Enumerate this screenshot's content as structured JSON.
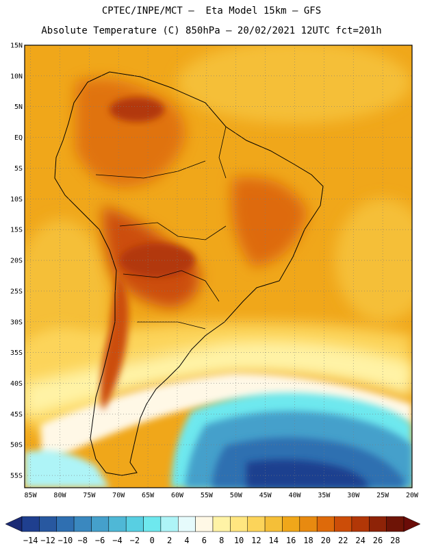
{
  "header": {
    "line1": "CPTEC/INPE/MCT –  Eta Model 15km – GFS",
    "line2": "Absolute Temperature (C) 850hPa – 20/02/2021 12UTC fct=201h"
  },
  "map": {
    "lat_labels": [
      "15N",
      "10N",
      "5N",
      "EQ",
      "5S",
      "10S",
      "15S",
      "20S",
      "25S",
      "30S",
      "35S",
      "40S",
      "45S",
      "50S",
      "55S"
    ],
    "lon_labels": [
      "85W",
      "80W",
      "75W",
      "70W",
      "65W",
      "60W",
      "55W",
      "50W",
      "45W",
      "40W",
      "35W",
      "30W",
      "25W",
      "20W"
    ],
    "lat_range": [
      15,
      -57
    ],
    "lon_range": [
      -86,
      -20
    ]
  },
  "colorbar": {
    "labels": [
      "-14",
      "-12",
      "-10",
      "-8",
      "-6",
      "-4",
      "-2",
      "0",
      "2",
      "4",
      "6",
      "8",
      "10",
      "12",
      "14",
      "16",
      "18",
      "20",
      "22",
      "24",
      "26",
      "28"
    ],
    "colors": [
      "#1f3f8f",
      "#2858a0",
      "#2f6fb1",
      "#3a88bf",
      "#45a0cb",
      "#4fb8d6",
      "#58cfe2",
      "#6ee8ee",
      "#aef4f7",
      "#e6fbfc",
      "#fff8e6",
      "#fff3a6",
      "#ffe680",
      "#fcd45a",
      "#f5bf38",
      "#f0a71a",
      "#e88a10",
      "#de6a0a",
      "#cc4d08",
      "#b23707",
      "#8e2307",
      "#6e1406"
    ],
    "low_color": "#1a2a75",
    "high_color": "#6a0c08"
  }
}
